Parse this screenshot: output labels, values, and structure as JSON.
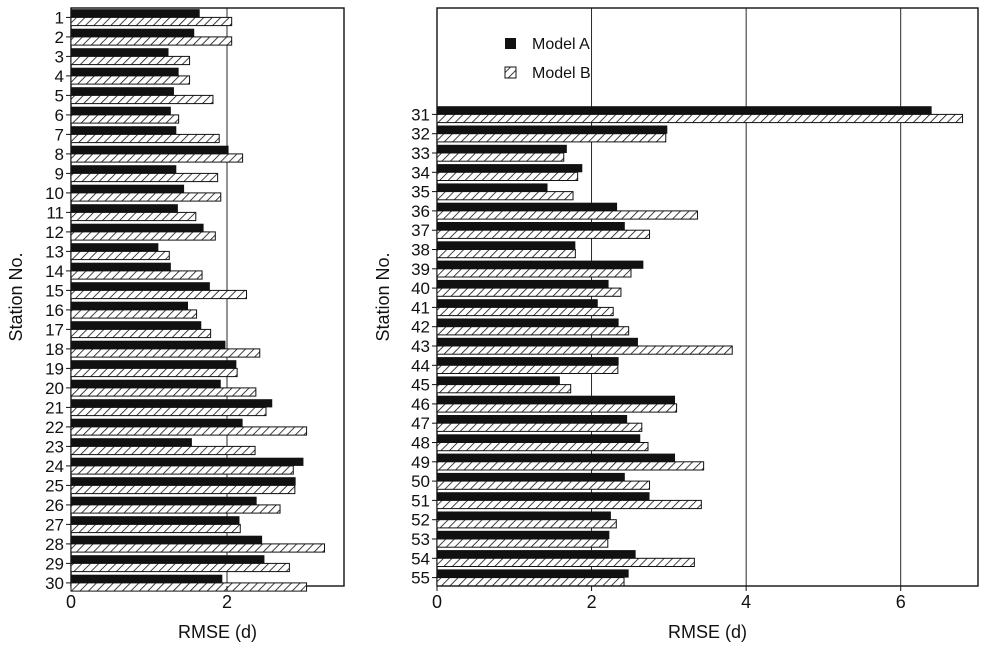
{
  "colors": {
    "model_a": "#111111",
    "model_b_hatch": "#111111",
    "grid": "#111111",
    "axis": "#111111"
  },
  "chart_data": [
    {
      "type": "bar",
      "orientation": "horizontal",
      "xlabel": "RMSE (d)",
      "ylabel": "Station No.",
      "xlim": [
        0,
        3.5
      ],
      "xticks": [
        0,
        2
      ],
      "grid": "vertical at x=2",
      "categories": [
        "1",
        "2",
        "3",
        "4",
        "5",
        "6",
        "7",
        "8",
        "9",
        "10",
        "11",
        "12",
        "13",
        "14",
        "15",
        "16",
        "17",
        "18",
        "19",
        "20",
        "21",
        "22",
        "23",
        "24",
        "25",
        "26",
        "27",
        "28",
        "29",
        "30"
      ],
      "series": [
        {
          "name": "Model A",
          "values": [
            1.65,
            1.58,
            1.25,
            1.38,
            1.32,
            1.28,
            1.35,
            2.02,
            1.35,
            1.45,
            1.37,
            1.7,
            1.12,
            1.28,
            1.78,
            1.5,
            1.67,
            1.98,
            2.12,
            1.92,
            2.58,
            2.2,
            1.55,
            2.98,
            2.88,
            2.38,
            2.16,
            2.45,
            2.48,
            1.94
          ]
        },
        {
          "name": "Model B",
          "values": [
            2.06,
            2.06,
            1.52,
            1.52,
            1.82,
            1.38,
            1.9,
            2.2,
            1.88,
            1.92,
            1.6,
            1.85,
            1.26,
            1.68,
            2.25,
            1.61,
            1.79,
            2.42,
            2.13,
            2.37,
            2.5,
            3.02,
            2.36,
            2.85,
            2.87,
            2.68,
            2.17,
            3.25,
            2.8,
            3.02
          ]
        }
      ]
    },
    {
      "type": "bar",
      "orientation": "horizontal",
      "xlabel": "RMSE (d)",
      "ylabel": "Station No.",
      "xlim": [
        0,
        7
      ],
      "xticks": [
        0,
        2,
        4,
        6
      ],
      "grid": "vertical at x=2,4,6",
      "legend": {
        "position": "top-left",
        "entries": [
          "Model A",
          "Model B"
        ]
      },
      "categories": [
        "31",
        "32",
        "33",
        "34",
        "35",
        "36",
        "37",
        "38",
        "39",
        "40",
        "41",
        "42",
        "43",
        "44",
        "45",
        "46",
        "47",
        "48",
        "49",
        "50",
        "51",
        "52",
        "53",
        "54",
        "55"
      ],
      "series": [
        {
          "name": "Model A",
          "values": [
            6.4,
            2.98,
            1.68,
            1.88,
            1.43,
            2.33,
            2.43,
            1.79,
            2.67,
            2.22,
            2.08,
            2.35,
            2.6,
            2.35,
            1.59,
            3.08,
            2.46,
            2.63,
            3.08,
            2.43,
            2.75,
            2.25,
            2.23,
            2.57,
            2.48
          ]
        },
        {
          "name": "Model B",
          "values": [
            6.8,
            2.96,
            1.64,
            1.82,
            1.76,
            3.37,
            2.75,
            1.79,
            2.51,
            2.38,
            2.28,
            2.48,
            3.82,
            2.34,
            1.73,
            3.1,
            2.65,
            2.73,
            3.45,
            2.75,
            3.42,
            2.32,
            2.21,
            3.33,
            2.42
          ]
        }
      ]
    }
  ]
}
